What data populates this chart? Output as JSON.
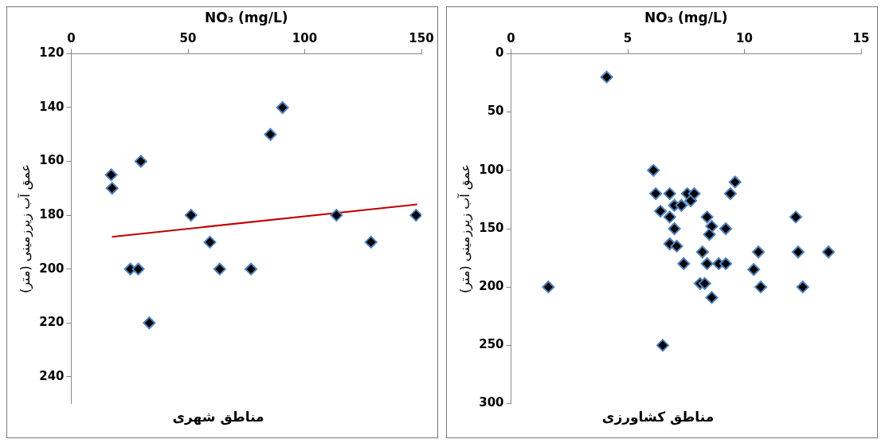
{
  "chart_data": [
    {
      "type": "scatter",
      "xlabel": "NO₃ (mg/L)",
      "ylabel": "عمق آب زیرزمینی (متر)",
      "annotations": [
        "مناطق شهری"
      ],
      "xlim": [
        0,
        150
      ],
      "xticks": [
        0,
        50,
        100,
        150
      ],
      "ylim": [
        250,
        120
      ],
      "yticks": [
        120,
        140,
        160,
        180,
        200,
        220,
        240
      ],
      "grid": false,
      "legend": false,
      "series": [
        {
          "color": "#000000",
          "marker": "diamond",
          "x": [
            17.1,
            17.5,
            29.8,
            51.3,
            59.4,
            63.6,
            77.0,
            85.3,
            90.5,
            113.6,
            128.4,
            147.7,
            25.3,
            28.7,
            33.4
          ],
          "values": [
            165,
            170,
            160,
            180,
            190,
            200,
            200,
            150,
            140,
            180,
            190,
            180,
            200,
            200,
            220
          ]
        },
        {
          "type": "line",
          "marker": "none",
          "color": "#c00000",
          "x": [
            17.4,
            148.2
          ],
          "values": [
            188,
            176
          ]
        }
      ]
    },
    {
      "type": "scatter",
      "xlabel": "NO₃ (mg/L)",
      "ylabel": "عمق آب زیرزمینی (متر)",
      "annotations": [
        "مناطق کشاورزی"
      ],
      "xlim": [
        0,
        15
      ],
      "xticks": [
        0,
        5,
        10,
        15
      ],
      "ylim": [
        300,
        0
      ],
      "yticks": [
        0,
        50,
        100,
        150,
        200,
        250,
        300
      ],
      "grid": false,
      "legend": false,
      "marker": "diamond",
      "series": [
        {
          "color": "#000000",
          "x": [
            4.1,
            1.6,
            6.5,
            6.1,
            6.2,
            6.4,
            6.8,
            6.8,
            7.0,
            7.0,
            6.8,
            7.1,
            7.3,
            7.4,
            7.55,
            7.7,
            7.85,
            8.4,
            8.6,
            8.5,
            8.2,
            8.4,
            8.1,
            8.3,
            8.6,
            8.9,
            9.2,
            9.2,
            9.4,
            9.6,
            10.4,
            10.6,
            10.7,
            12.2,
            12.3,
            12.5,
            13.6
          ],
          "values": [
            20,
            200,
            250,
            100,
            120,
            135,
            120,
            140,
            130,
            150,
            163,
            165,
            130,
            180,
            120,
            126,
            120,
            140,
            148,
            155,
            170,
            180,
            197,
            197,
            209,
            180,
            150,
            180,
            120,
            110,
            185,
            170,
            200,
            140,
            170,
            200,
            170
          ]
        }
      ]
    }
  ]
}
